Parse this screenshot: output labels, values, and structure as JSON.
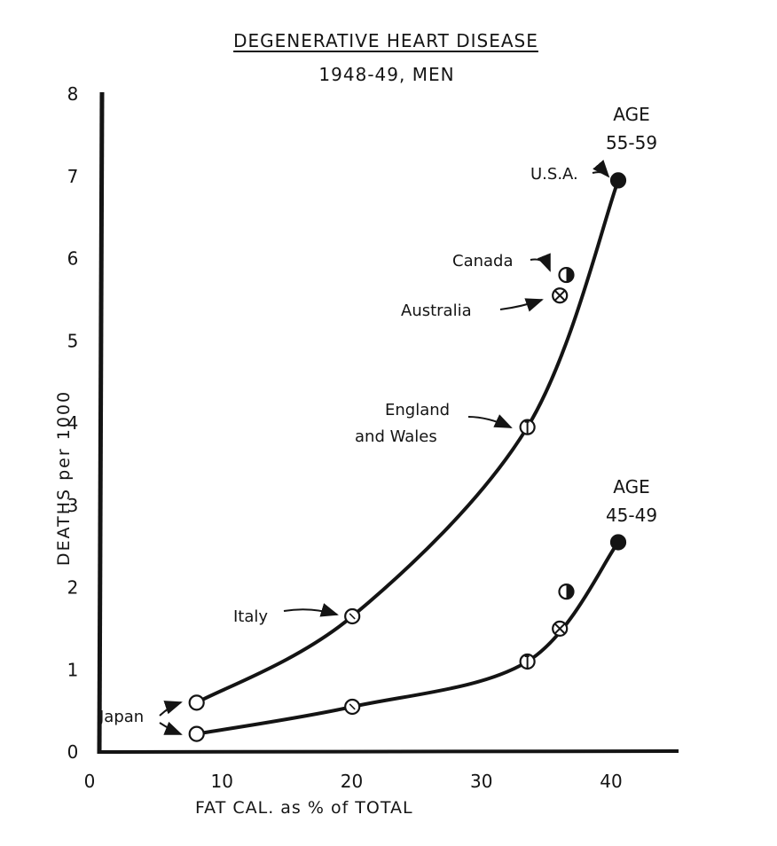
{
  "chart_data": {
    "type": "scatter",
    "title": "DEGENERATIVE HEART DISEASE",
    "subtitle": "1948-49, MEN",
    "xlabel": "FAT CAL. as % of TOTAL",
    "ylabel": "DEATHS per 1000",
    "xlim": [
      0,
      45
    ],
    "ylim": [
      0,
      8
    ],
    "xticks": [
      0,
      10,
      20,
      30,
      40
    ],
    "yticks": [
      0,
      1,
      2,
      3,
      4,
      5,
      6,
      7,
      8
    ],
    "grid": false,
    "series": [
      {
        "name": "AGE 55-59",
        "label_lines": [
          "AGE",
          "55-59"
        ],
        "points": [
          {
            "country": "Japan",
            "x": 7.5,
            "y": 0.6
          },
          {
            "country": "Italy",
            "x": 19.5,
            "y": 1.65
          },
          {
            "country": "England and Wales",
            "x": 33,
            "y": 3.95
          },
          {
            "country": "Australia",
            "x": 35.5,
            "y": 5.55
          },
          {
            "country": "Canada",
            "x": 36,
            "y": 5.8
          },
          {
            "country": "U.S.A.",
            "x": 40,
            "y": 6.95
          }
        ]
      },
      {
        "name": "AGE 45-49",
        "label_lines": [
          "AGE",
          "45-49"
        ],
        "points": [
          {
            "country": "Japan",
            "x": 7.5,
            "y": 0.22
          },
          {
            "country": "Italy",
            "x": 19.5,
            "y": 0.55
          },
          {
            "country": "England and Wales",
            "x": 33,
            "y": 1.1
          },
          {
            "country": "Australia",
            "x": 35.5,
            "y": 1.5
          },
          {
            "country": "Canada",
            "x": 36,
            "y": 1.95
          },
          {
            "country": "U.S.A.",
            "x": 40,
            "y": 2.55
          }
        ]
      }
    ],
    "annotations": {
      "japan": "Japan",
      "italy": "Italy",
      "england_line1": "England",
      "england_line2": "and Wales",
      "australia": "Australia",
      "canada": "Canada",
      "usa": "U.S.A."
    }
  },
  "colors": {
    "ink": "#141414",
    "background": "#ffffff"
  }
}
